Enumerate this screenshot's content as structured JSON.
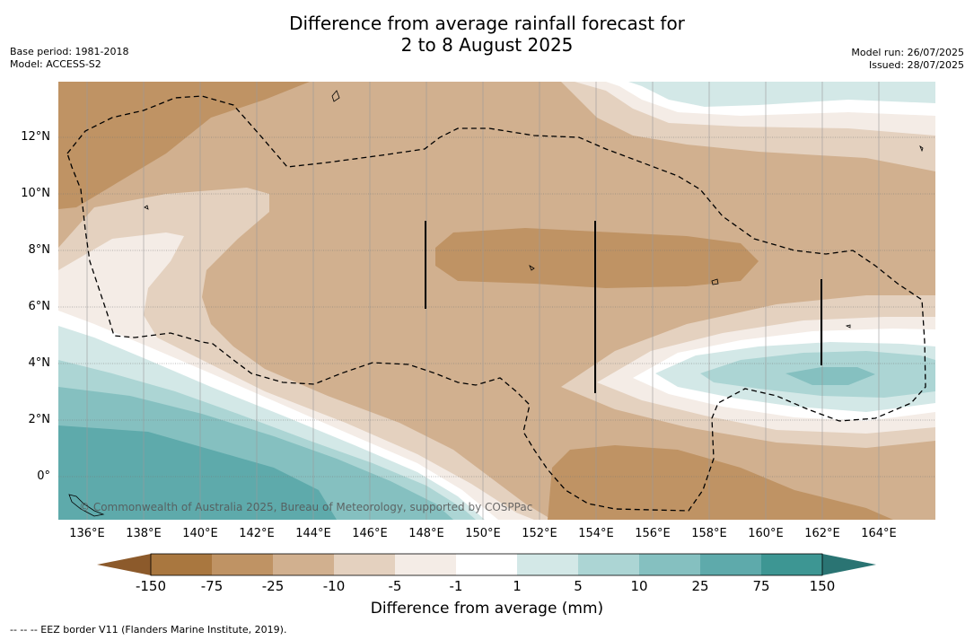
{
  "header": {
    "title_line1": "Difference from average rainfall forecast for",
    "title_line2": "2 to 8 August 2025",
    "base_period": "Base period: 1981-2018",
    "model": "Model: ACCESS-S2",
    "model_run": "Model run: 26/07/2025",
    "issued": "Issued: 28/07/2025"
  },
  "map": {
    "lat_labels": [
      "12°N",
      "10°N",
      "8°N",
      "6°N",
      "4°N",
      "2°N",
      "0°"
    ],
    "lon_labels": [
      "136°E",
      "138°E",
      "140°E",
      "142°E",
      "144°E",
      "146°E",
      "148°E",
      "150°E",
      "152°E",
      "154°E",
      "156°E",
      "158°E",
      "160°E",
      "162°E",
      "164°E"
    ],
    "copyright": "© Commonwealth of Australia 2025, Bureau of Meteorology, supported by COSPPac"
  },
  "colorbar": {
    "labels": [
      "-150",
      "-75",
      "-25",
      "-10",
      "-5",
      "-1",
      "1",
      "5",
      "10",
      "25",
      "75",
      "150"
    ],
    "colors": {
      "lt_-150": "#8c5a2b",
      "-150_-75": "#a9773f",
      "-75_-25": "#bf9364",
      "-25_-10": "#d1b08f",
      "-10_-5": "#e4d1bf",
      "-5_-1": "#f4ece6",
      "-1_1": "#ffffff",
      "1_5": "#d3e8e7",
      "5_10": "#acd5d4",
      "10_25": "#85c0c0",
      "25_75": "#5eaaab",
      "75_150": "#3d9693",
      "gt_150": "#2a7473"
    },
    "title": "Difference from average (mm)"
  },
  "footnote": "--  --  -- EEZ border V11 (Flanders Marine Institute, 2019)."
}
